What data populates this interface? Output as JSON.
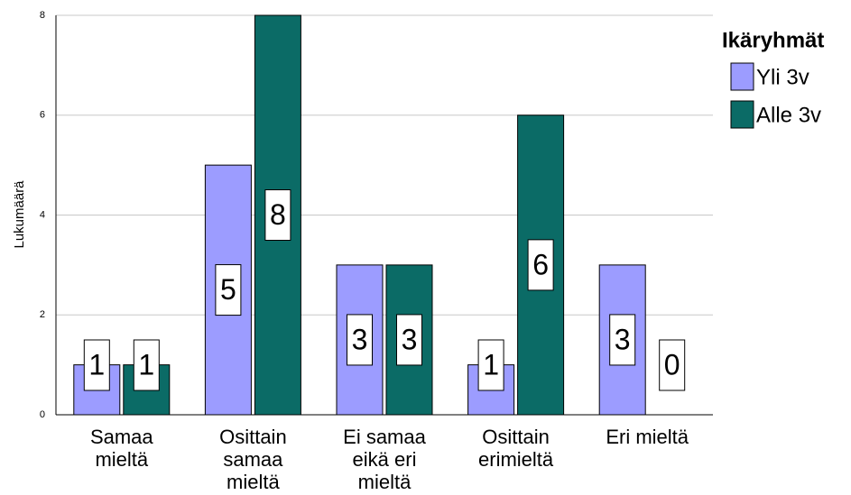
{
  "chart_data": {
    "type": "bar",
    "categories": [
      "Samaa mieltä",
      "Osittain samaa mieltä",
      "Ei samaa eikä eri mieltä",
      "Osittain erimieltä",
      "Eri mieltä"
    ],
    "series": [
      {
        "name": "Yli 3v",
        "color": "#9c9cff",
        "values": [
          1,
          5,
          3,
          1,
          3
        ]
      },
      {
        "name": "Alle 3v",
        "color": "#0b6b66",
        "values": [
          1,
          8,
          3,
          6,
          0
        ]
      }
    ],
    "ylabel": "Lukumäärä",
    "legend_title": "Ikäryhmät",
    "ylim": [
      0,
      8
    ],
    "yticks": [
      0,
      2,
      4,
      6,
      8
    ],
    "grid": true
  }
}
